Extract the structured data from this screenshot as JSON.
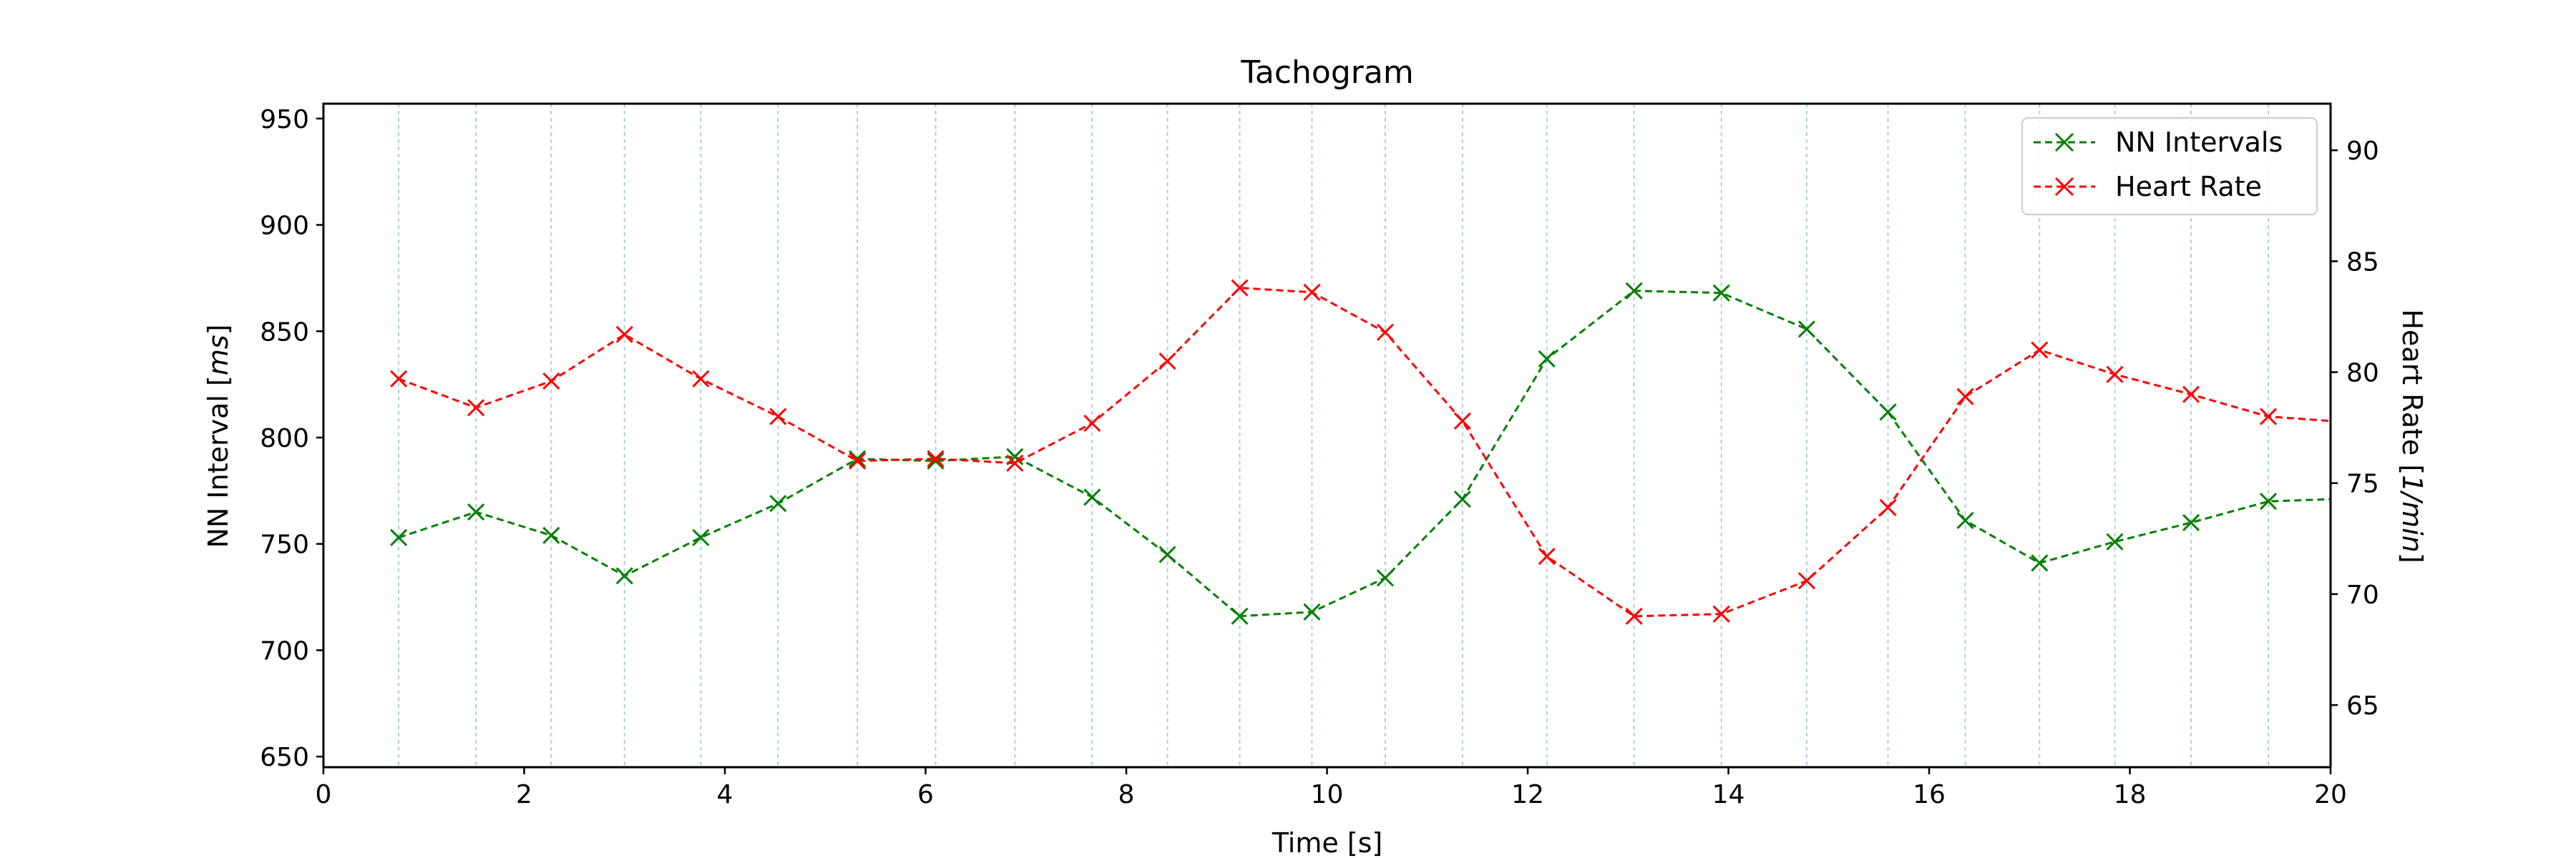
{
  "chart_data": {
    "type": "line",
    "title": "Tachogram",
    "xlabel": "Time [s]",
    "ylabel_left_prefix": "NN Interval [",
    "ylabel_left_unit": "ms",
    "ylabel_left_suffix": "]",
    "ylabel_right_prefix": "Heart Rate [",
    "ylabel_right_unit": "1/min",
    "ylabel_right_suffix": "]",
    "xlim": [
      0,
      20
    ],
    "ylim_left": [
      645,
      957
    ],
    "ylim_right": [
      62.2,
      92.1
    ],
    "xticks": [
      0,
      2,
      4,
      6,
      8,
      10,
      12,
      14,
      16,
      18,
      20
    ],
    "xtick_labels": [
      "0",
      "2",
      "4",
      "6",
      "8",
      "10",
      "12",
      "14",
      "16",
      "18",
      "20"
    ],
    "yticks_left": [
      650,
      700,
      750,
      800,
      850,
      900,
      950
    ],
    "ytick_labels_left": [
      "650",
      "700",
      "750",
      "800",
      "850",
      "900",
      "950"
    ],
    "yticks_right": [
      65,
      70,
      75,
      80,
      85,
      90
    ],
    "ytick_labels_right": [
      "65",
      "70",
      "75",
      "80",
      "85",
      "90"
    ],
    "vertical_gridlines_x": [
      0.75,
      1.52,
      2.27,
      3.0,
      3.76,
      4.53,
      5.32,
      6.1,
      6.89,
      7.66,
      8.41,
      9.13,
      9.85,
      10.58,
      11.35,
      12.19,
      13.06,
      13.93,
      14.78,
      15.59,
      16.36,
      17.1,
      17.85,
      18.61,
      19.38
    ],
    "legend_position": "upper right",
    "series": [
      {
        "name": "NN Intervals",
        "axis": "left",
        "color": "#008000",
        "x": [
          0.75,
          1.52,
          2.27,
          3.0,
          3.76,
          4.53,
          5.32,
          6.1,
          6.89,
          7.66,
          8.41,
          9.13,
          9.85,
          10.58,
          11.35,
          12.19,
          13.06,
          13.93,
          14.78,
          15.59,
          16.36,
          17.1,
          17.85,
          18.61,
          19.38,
          20.0
        ],
        "y": [
          753,
          765,
          754,
          735,
          753,
          769,
          790,
          789,
          791,
          772,
          745,
          716,
          718,
          734,
          771,
          837,
          869,
          868,
          851,
          812,
          761,
          741,
          751,
          760,
          770,
          771
        ]
      },
      {
        "name": "Heart Rate",
        "axis": "right",
        "color": "#ff0000",
        "x": [
          0.75,
          1.52,
          2.27,
          3.0,
          3.76,
          4.53,
          5.32,
          6.1,
          6.89,
          7.66,
          8.41,
          9.13,
          9.85,
          10.58,
          11.35,
          12.19,
          13.06,
          13.93,
          14.78,
          15.59,
          16.36,
          17.1,
          17.85,
          18.61,
          19.38,
          20.0
        ],
        "y": [
          79.7,
          78.4,
          79.6,
          81.7,
          79.7,
          78.0,
          76.0,
          76.1,
          75.9,
          77.7,
          80.5,
          83.8,
          83.6,
          81.8,
          77.8,
          71.7,
          69.0,
          69.1,
          70.6,
          73.9,
          78.9,
          81.0,
          79.9,
          79.0,
          78.0,
          77.8
        ]
      }
    ]
  }
}
